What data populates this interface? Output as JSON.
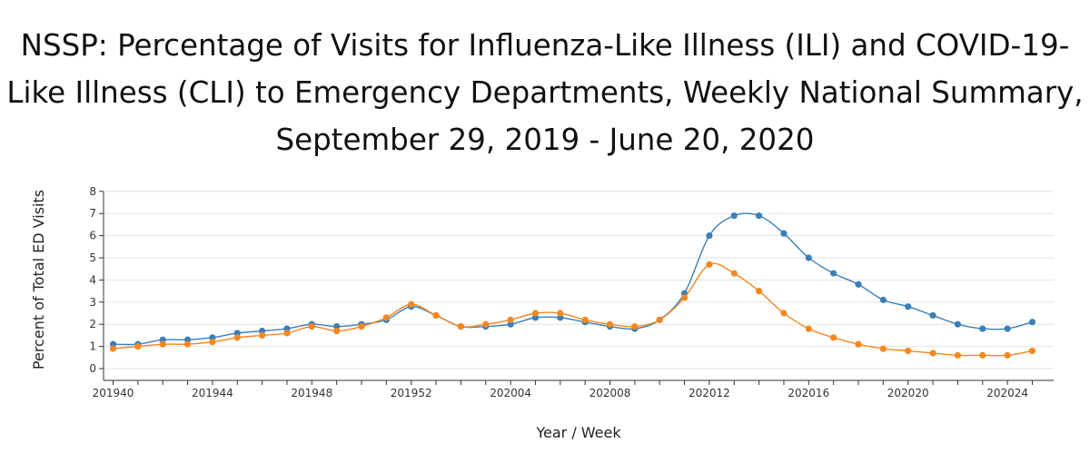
{
  "chart_data": {
    "type": "line",
    "title": "NSSP: Percentage of Visits for Influenza-Like Illness (ILI) and COVID-19-Like Illness (CLI) to Emergency Departments, Weekly National Summary, September 29, 2019 - June 20, 2020",
    "title_lines": [
      "NSSP: Percentage of Visits for Influenza-Like Illness (ILI) and COVID-19-",
      "Like Illness (CLI) to Emergency Departments, Weekly National Summary,",
      "September 29, 2019 - June 20, 2020"
    ],
    "xlabel": "Year / Week",
    "ylabel": "Percent of Total ED Visits",
    "ylim": [
      0,
      8
    ],
    "yticks": [
      "0",
      "1",
      "2",
      "3",
      "4",
      "5",
      "6",
      "7",
      "8"
    ],
    "xticks": [
      "201940",
      "201944",
      "201948",
      "201952",
      "202004",
      "202008",
      "202012",
      "202016",
      "202020",
      "202024"
    ],
    "categories": [
      "201940",
      "201941",
      "201942",
      "201943",
      "201944",
      "201945",
      "201946",
      "201947",
      "201948",
      "201949",
      "201950",
      "201951",
      "201952",
      "202001",
      "202002",
      "202003",
      "202004",
      "202005",
      "202006",
      "202007",
      "202008",
      "202009",
      "202010",
      "202011",
      "202012",
      "202013",
      "202014",
      "202015",
      "202016",
      "202017",
      "202018",
      "202019",
      "202020",
      "202021",
      "202022",
      "202023",
      "202024",
      "202025"
    ],
    "grid": true,
    "legend": "none",
    "series": [
      {
        "color": "#3a7fb8",
        "values": [
          1.1,
          1.1,
          1.3,
          1.3,
          1.4,
          1.6,
          1.7,
          1.8,
          2.0,
          1.9,
          2.0,
          2.2,
          2.8,
          2.4,
          1.9,
          1.9,
          2.0,
          2.3,
          2.3,
          2.1,
          1.9,
          1.8,
          2.2,
          3.4,
          6.0,
          6.9,
          6.9,
          6.1,
          5.0,
          4.3,
          3.8,
          3.1,
          2.8,
          2.4,
          2.0,
          1.8,
          1.8,
          2.1
        ]
      },
      {
        "color": "#f5871f",
        "values": [
          0.9,
          1.0,
          1.1,
          1.1,
          1.2,
          1.4,
          1.5,
          1.6,
          1.9,
          1.7,
          1.9,
          2.3,
          2.9,
          2.4,
          1.9,
          2.0,
          2.2,
          2.5,
          2.5,
          2.2,
          2.0,
          1.9,
          2.2,
          3.2,
          4.7,
          4.3,
          3.5,
          2.5,
          1.8,
          1.4,
          1.1,
          0.9,
          0.8,
          0.7,
          0.6,
          0.6,
          0.6,
          0.8
        ]
      }
    ]
  }
}
